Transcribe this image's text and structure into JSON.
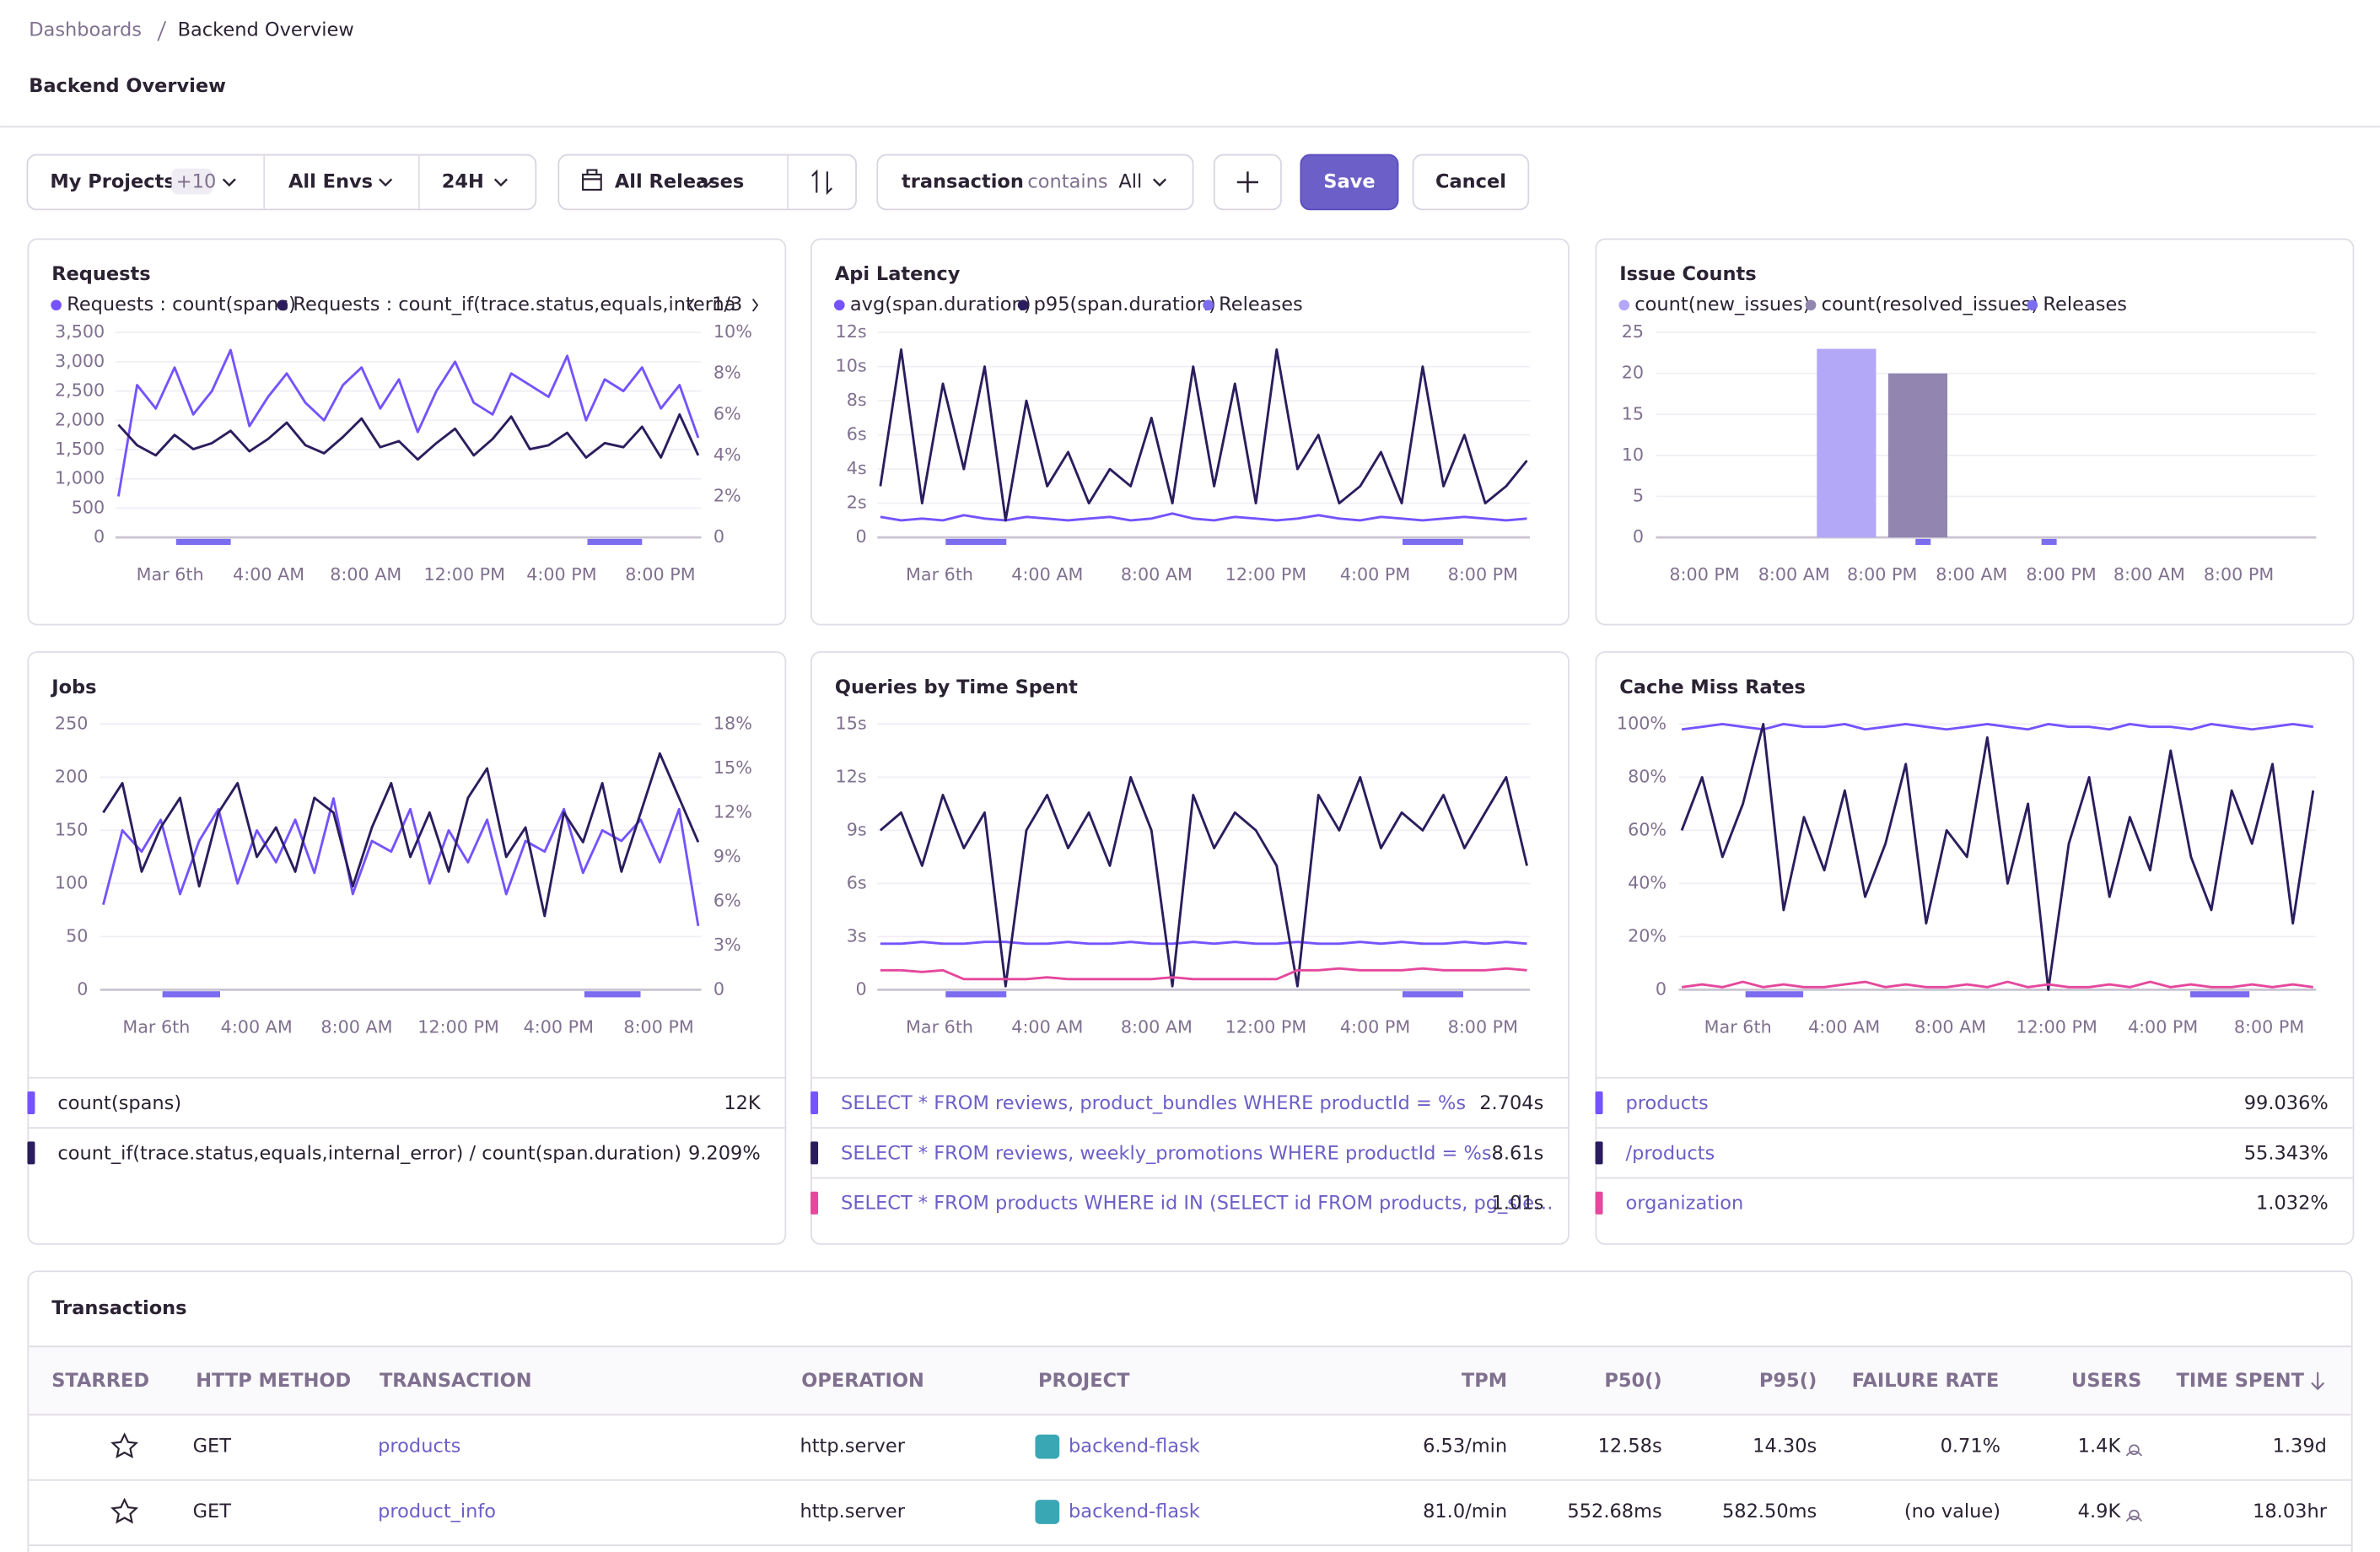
{
  "breadcrumb": [
    "Dashboards",
    "Backend Overview"
  ],
  "title": "Backend Overview",
  "toolbar": {
    "projects": "My Projects",
    "projects_extra": "+10",
    "envs": "All Envs",
    "period": "24H",
    "releases": "All Releases",
    "filter_key": "transaction",
    "filter_op": "contains",
    "filter_value": "All",
    "save": "Save",
    "cancel": "Cancel"
  },
  "widgets": [
    {
      "type": "line",
      "title": "Requests",
      "legend": "top",
      "legend_page": "1/3",
      "x_axis_labels": [
        "Mar 6th",
        "4:00 AM",
        "8:00 AM",
        "12:00 PM",
        "4:00 PM",
        "8:00 PM"
      ],
      "ylim": [
        0,
        3500
      ],
      "yticks": [
        0,
        500,
        {
          "value": 1000,
          "label": "1,000"
        },
        {
          "value": 1500,
          "label": "1,500"
        },
        {
          "value": 2000,
          "label": "2,000"
        },
        {
          "value": 2500,
          "label": "2,500"
        },
        {
          "value": 3000,
          "label": "3,000"
        },
        {
          "value": 3500,
          "label": "3,500"
        }
      ],
      "y2lim": [
        0,
        10
      ],
      "y2ticks": [
        0,
        {
          "value": 2,
          "label": "2%"
        },
        {
          "value": 4,
          "label": "4%"
        },
        {
          "value": 6,
          "label": "6%"
        },
        {
          "value": 8,
          "label": "8%"
        },
        {
          "value": 10,
          "label": "10%"
        }
      ],
      "series": [
        {
          "name": "Requests : count(spans)",
          "color": "#7553ff",
          "values": [
            700,
            2600,
            2200,
            2900,
            2100,
            2500,
            3200,
            1900,
            2400,
            2800,
            2300,
            2000,
            2600,
            2900,
            2200,
            2700,
            1800,
            2500,
            3000,
            2300,
            2100,
            2800,
            2600,
            2400,
            3100,
            2000,
            2700,
            2500,
            2900,
            2200,
            2600,
            1700
          ]
        },
        {
          "name": "Requests : count_if(trace.status,equals,interna",
          "color": "#2b1d5d",
          "axis": "y2",
          "values": [
            5.5,
            4.5,
            4.0,
            5.0,
            4.3,
            4.6,
            5.2,
            4.2,
            4.8,
            5.6,
            4.5,
            4.1,
            4.9,
            5.8,
            4.4,
            4.7,
            3.8,
            4.6,
            5.3,
            4.0,
            4.8,
            5.9,
            4.3,
            4.5,
            5.1,
            3.9,
            4.6,
            4.4,
            5.4,
            3.9,
            6.0,
            4.0
          ]
        }
      ]
    },
    {
      "type": "line",
      "title": "Api Latency",
      "legend": "top",
      "legend_extra": "Releases",
      "releases_color": "#7b6cf0",
      "x_axis_labels": [
        "Mar 6th",
        "4:00 AM",
        "8:00 AM",
        "12:00 PM",
        "4:00 PM",
        "8:00 PM"
      ],
      "ylim": [
        0,
        12
      ],
      "yticks": [
        0,
        {
          "value": 2,
          "label": "2s"
        },
        {
          "value": 4,
          "label": "4s"
        },
        {
          "value": 6,
          "label": "6s"
        },
        {
          "value": 8,
          "label": "8s"
        },
        {
          "value": 10,
          "label": "10s"
        },
        {
          "value": 12,
          "label": "12s"
        }
      ],
      "series": [
        {
          "name": "avg(span.duration)",
          "color": "#7553ff",
          "values": [
            1.2,
            1.0,
            1.1,
            1.0,
            1.3,
            1.1,
            1.0,
            1.2,
            1.1,
            1.0,
            1.1,
            1.2,
            1.0,
            1.1,
            1.4,
            1.1,
            1.0,
            1.2,
            1.1,
            1.0,
            1.1,
            1.3,
            1.1,
            1.0,
            1.2,
            1.1,
            1.0,
            1.1,
            1.2,
            1.1,
            1.0,
            1.1
          ]
        },
        {
          "name": "p95(span.duration)",
          "color": "#2b1d5d",
          "values": [
            3,
            11,
            2,
            9,
            4,
            10,
            1,
            8,
            3,
            5,
            2,
            4,
            3,
            7,
            2,
            10,
            3,
            9,
            2,
            11,
            4,
            6,
            2,
            3,
            5,
            2,
            10,
            3,
            6,
            2,
            3,
            4.5
          ]
        }
      ]
    },
    {
      "type": "bar",
      "title": "Issue Counts",
      "legend": "top",
      "legend_extra": "Releases",
      "releases_color": "#7b6cf0",
      "x_axis_labels": [
        "8:00 PM",
        "8:00 AM",
        "8:00 PM",
        "8:00 AM",
        "8:00 PM",
        "8:00 AM",
        "8:00 PM"
      ],
      "ylim": [
        0,
        25
      ],
      "yticks": [
        0,
        5,
        10,
        15,
        20,
        25
      ],
      "series": [
        {
          "name": "count(new_issues)",
          "color": "#b3a7f7",
          "values": [
            0,
            0,
            23,
            0,
            0,
            0,
            0
          ]
        },
        {
          "name": "count(resolved_issues)",
          "color": "#9285b0",
          "values": [
            0,
            0,
            20,
            0,
            0,
            0,
            0
          ]
        }
      ]
    },
    {
      "type": "line",
      "title": "Jobs",
      "legend": "table",
      "x_axis_labels": [
        "Mar 6th",
        "4:00 AM",
        "8:00 AM",
        "12:00 PM",
        "4:00 PM",
        "8:00 PM"
      ],
      "ylim": [
        0,
        250
      ],
      "yticks": [
        0,
        50,
        100,
        150,
        200,
        250
      ],
      "y2lim": [
        0,
        18
      ],
      "y2ticks": [
        0,
        {
          "value": 3,
          "label": "3%"
        },
        {
          "value": 6,
          "label": "6%"
        },
        {
          "value": 9,
          "label": "9%"
        },
        {
          "value": 12,
          "label": "12%"
        },
        {
          "value": 15,
          "label": "15%"
        },
        {
          "value": 18,
          "label": "18%"
        }
      ],
      "series": [
        {
          "name": "count(spans)",
          "summary": "12K",
          "color": "#7553ff",
          "values": [
            80,
            150,
            130,
            160,
            90,
            140,
            170,
            100,
            150,
            120,
            160,
            110,
            180,
            90,
            140,
            130,
            170,
            100,
            150,
            120,
            160,
            90,
            140,
            130,
            170,
            110,
            150,
            140,
            160,
            120,
            170,
            60
          ]
        },
        {
          "name": "count_if(trace.status,equals,internal_error) / count(span.duration)",
          "summary": "9.209%",
          "color": "#2b1d5d",
          "axis": "y2",
          "values": [
            12,
            14,
            8,
            11,
            13,
            7,
            12,
            14,
            9,
            11,
            8,
            13,
            12,
            7,
            11,
            14,
            9,
            12,
            8,
            13,
            15,
            9,
            11,
            5,
            12,
            10,
            14,
            8,
            12,
            16,
            13,
            10
          ]
        }
      ]
    },
    {
      "type": "line",
      "title": "Queries by Time Spent",
      "legend": "table",
      "x_axis_labels": [
        "Mar 6th",
        "4:00 AM",
        "8:00 AM",
        "12:00 PM",
        "4:00 PM",
        "8:00 PM"
      ],
      "ylim": [
        0,
        15
      ],
      "yticks": [
        0,
        {
          "value": 3,
          "label": "3s"
        },
        {
          "value": 6,
          "label": "6s"
        },
        {
          "value": 9,
          "label": "9s"
        },
        {
          "value": 12,
          "label": "12s"
        },
        {
          "value": 15,
          "label": "15s"
        }
      ],
      "series": [
        {
          "name": "SELECT * FROM reviews, product_bundles WHERE productId = %s",
          "summary": "2.704s",
          "color": "#7553ff",
          "values": [
            2.6,
            2.6,
            2.7,
            2.6,
            2.6,
            2.7,
            2.7,
            2.6,
            2.6,
            2.7,
            2.6,
            2.6,
            2.7,
            2.6,
            2.6,
            2.7,
            2.6,
            2.7,
            2.6,
            2.6,
            2.7,
            2.6,
            2.6,
            2.7,
            2.6,
            2.7,
            2.6,
            2.6,
            2.7,
            2.6,
            2.7,
            2.6
          ]
        },
        {
          "name": "SELECT * FROM reviews, weekly_promotions WHERE productId = %s",
          "summary": "8.61s",
          "color": "#2b1d5d",
          "values": [
            9,
            10,
            7,
            11,
            8,
            10,
            0.2,
            9,
            11,
            8,
            10,
            7,
            12,
            9,
            0.2,
            11,
            8,
            10,
            9,
            7,
            0.2,
            11,
            9,
            12,
            8,
            10,
            9,
            11,
            8,
            10,
            12,
            7
          ]
        },
        {
          "name": "SELECT * FROM products WHERE id IN (SELECT id FROM products, pg_sle…",
          "summary": "1.01s",
          "color": "#e5489c",
          "values": [
            1.1,
            1.1,
            1.0,
            1.1,
            0.6,
            0.6,
            0.6,
            0.6,
            0.7,
            0.6,
            0.6,
            0.6,
            0.6,
            0.6,
            0.7,
            0.6,
            0.6,
            0.6,
            0.6,
            0.6,
            1.1,
            1.1,
            1.2,
            1.1,
            1.1,
            1.1,
            1.2,
            1.1,
            1.1,
            1.1,
            1.2,
            1.1
          ]
        }
      ]
    },
    {
      "type": "line",
      "title": "Cache Miss Rates",
      "legend": "table",
      "x_axis_labels": [
        "Mar 6th",
        "4:00 AM",
        "8:00 AM",
        "12:00 PM",
        "4:00 PM",
        "8:00 PM"
      ],
      "ylim": [
        0,
        100
      ],
      "yticks": [
        0,
        {
          "value": 20,
          "label": "20%"
        },
        {
          "value": 40,
          "label": "40%"
        },
        {
          "value": 60,
          "label": "60%"
        },
        {
          "value": 80,
          "label": "80%"
        },
        {
          "value": 100,
          "label": "100%"
        }
      ],
      "series": [
        {
          "name": "products",
          "summary": "99.036%",
          "color": "#7553ff",
          "values": [
            98,
            99,
            100,
            99,
            98,
            100,
            99,
            99,
            100,
            98,
            99,
            100,
            99,
            98,
            99,
            100,
            99,
            98,
            100,
            99,
            99,
            98,
            100,
            99,
            99,
            98,
            100,
            99,
            98,
            99,
            100,
            99
          ]
        },
        {
          "name": "/products",
          "summary": "55.343%",
          "color": "#2b1d5d",
          "values": [
            60,
            80,
            50,
            70,
            100,
            30,
            65,
            45,
            75,
            35,
            55,
            85,
            25,
            60,
            50,
            95,
            40,
            70,
            0,
            55,
            80,
            35,
            65,
            45,
            90,
            50,
            30,
            75,
            55,
            85,
            25,
            75
          ]
        },
        {
          "name": "organization",
          "summary": "1.032%",
          "color": "#e5489c",
          "values": [
            1,
            2,
            1,
            3,
            1,
            2,
            1,
            1,
            2,
            3,
            1,
            2,
            1,
            1,
            2,
            1,
            3,
            1,
            2,
            1,
            1,
            2,
            1,
            3,
            1,
            2,
            1,
            1,
            2,
            1,
            2,
            1
          ]
        }
      ]
    }
  ],
  "transactions": {
    "title": "Transactions",
    "columns": [
      "STARRED",
      "HTTP METHOD",
      "TRANSACTION",
      "OPERATION",
      "PROJECT",
      "TPM",
      "P50()",
      "P95()",
      "FAILURE RATE",
      "USERS",
      "TIME SPENT"
    ],
    "rows": [
      [
        "GET",
        "products",
        "http.server",
        "backend-flask",
        "6.53/min",
        "12.58s",
        "14.30s",
        "0.71%",
        "1.4K",
        "1.39d"
      ],
      [
        "GET",
        "product_info",
        "http.server",
        "backend-flask",
        "81.0/min",
        "552.68ms",
        "582.50ms",
        "(no value)",
        "4.9K",
        "18.03hr"
      ]
    ]
  }
}
